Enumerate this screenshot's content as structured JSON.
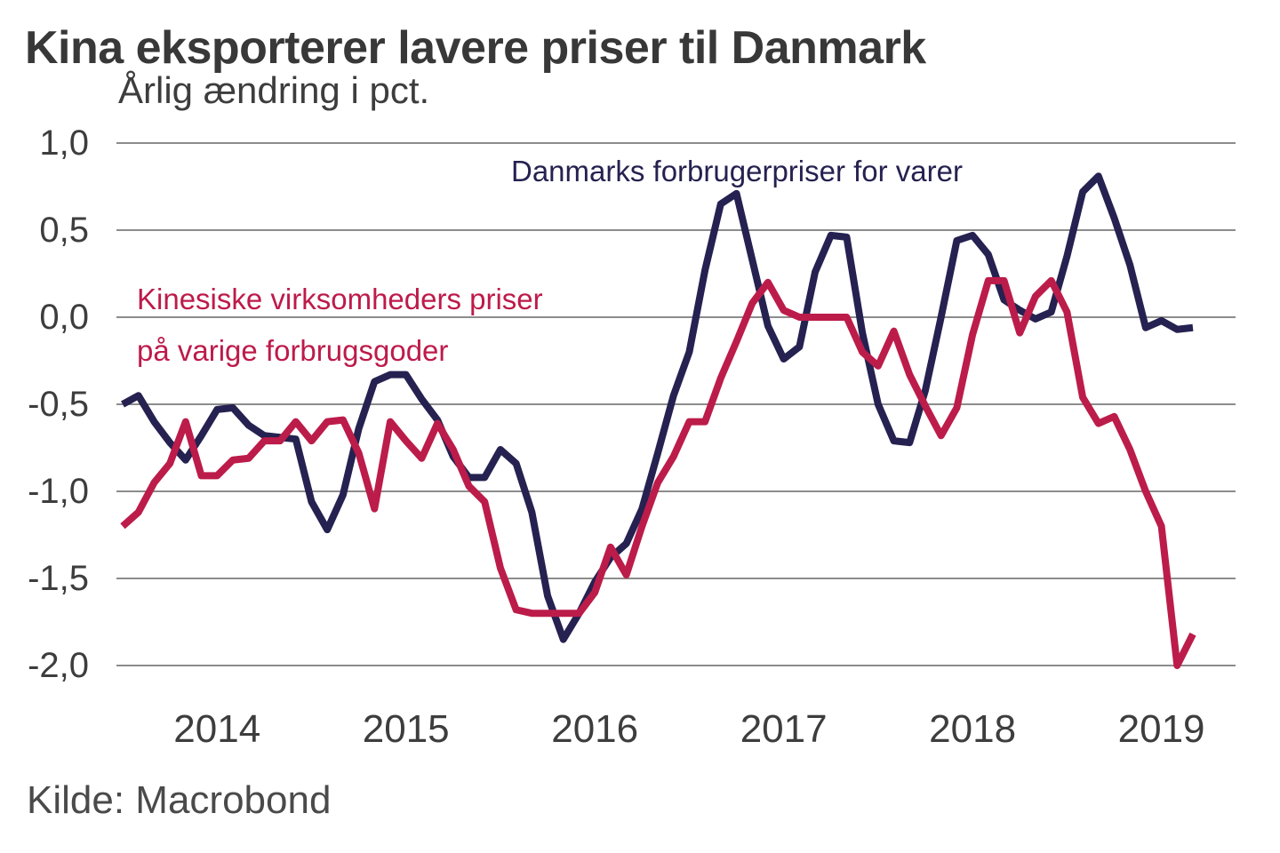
{
  "title": "Kina eksporterer lavere priser til Danmark",
  "subtitle": "Årlig ændring i pct.",
  "source": "Kilde: Macrobond",
  "colors": {
    "navy_line": "#252150",
    "red_line": "#bc1c4a",
    "grid": "#7b7b7b",
    "axis_text": "#3d3d3d",
    "title_text": "#383838",
    "background": "#ffffff"
  },
  "chart_data": {
    "type": "line",
    "title": "Kina eksporterer lavere priser til Danmark",
    "subtitle": "Årlig ændring i pct.",
    "xlabel": "",
    "ylabel": "Årlig ændring i pct.",
    "ylim": [
      -2.0,
      1.0
    ],
    "ytick_step": 0.5,
    "ytick_labels": [
      "1,0",
      "0,5",
      "0,0",
      "-0,5",
      "-1,0",
      "-1,5",
      "-2,0"
    ],
    "grid": "horizontal",
    "legend_position": "inline-annotations",
    "frequency": "monthly",
    "x": [
      "2013-07",
      "2013-08",
      "2013-09",
      "2013-10",
      "2013-11",
      "2013-12",
      "2014-01",
      "2014-02",
      "2014-03",
      "2014-04",
      "2014-05",
      "2014-06",
      "2014-07",
      "2014-08",
      "2014-09",
      "2014-10",
      "2014-11",
      "2014-12",
      "2015-01",
      "2015-02",
      "2015-03",
      "2015-04",
      "2015-05",
      "2015-06",
      "2015-07",
      "2015-08",
      "2015-09",
      "2015-10",
      "2015-11",
      "2015-12",
      "2016-01",
      "2016-02",
      "2016-03",
      "2016-04",
      "2016-05",
      "2016-06",
      "2016-07",
      "2016-08",
      "2016-09",
      "2016-10",
      "2016-11",
      "2016-12",
      "2017-01",
      "2017-02",
      "2017-03",
      "2017-04",
      "2017-05",
      "2017-06",
      "2017-07",
      "2017-08",
      "2017-09",
      "2017-10",
      "2017-11",
      "2017-12",
      "2018-01",
      "2018-02",
      "2018-03",
      "2018-04",
      "2018-05",
      "2018-06",
      "2018-07",
      "2018-08",
      "2018-09",
      "2018-10",
      "2018-11",
      "2018-12",
      "2019-01",
      "2019-02",
      "2019-03"
    ],
    "year_ticks": [
      {
        "label": "2014",
        "month_index": 6
      },
      {
        "label": "2015",
        "month_index": 18
      },
      {
        "label": "2016",
        "month_index": 30
      },
      {
        "label": "2017",
        "month_index": 42
      },
      {
        "label": "2018",
        "month_index": 54
      },
      {
        "label": "2019",
        "month_index": 66
      }
    ],
    "series": [
      {
        "name": "Danmarks forbrugerpriser for varer",
        "color": "#252150",
        "label_lines": [
          "Danmarks forbrugerpriser for varer"
        ],
        "values": [
          -0.5,
          -0.45,
          -0.6,
          -0.72,
          -0.82,
          -0.68,
          -0.53,
          -0.52,
          -0.62,
          -0.68,
          -0.69,
          -0.7,
          -1.06,
          -1.22,
          -1.02,
          -0.64,
          -0.37,
          -0.33,
          -0.33,
          -0.47,
          -0.59,
          -0.8,
          -0.92,
          -0.92,
          -0.76,
          -0.84,
          -1.12,
          -1.6,
          -1.85,
          -1.7,
          -1.52,
          -1.38,
          -1.3,
          -1.1,
          -0.78,
          -0.45,
          -0.2,
          0.27,
          0.65,
          0.71,
          0.33,
          -0.05,
          -0.24,
          -0.17,
          0.26,
          0.47,
          0.46,
          -0.09,
          -0.5,
          -0.71,
          -0.72,
          -0.42,
          0.0,
          0.44,
          0.47,
          0.36,
          0.1,
          0.04,
          -0.01,
          0.03,
          0.35,
          0.72,
          0.81,
          0.57,
          0.3,
          -0.06,
          -0.02,
          -0.07,
          -0.06
        ]
      },
      {
        "name": "Kinesiske virksomheders priser på varige forbrugsgoder",
        "color": "#bc1c4a",
        "label_lines": [
          "Kinesiske virksomheders priser",
          "på varige forbrugsgoder"
        ],
        "values": [
          -1.2,
          -1.12,
          -0.95,
          -0.84,
          -0.6,
          -0.91,
          -0.91,
          -0.82,
          -0.81,
          -0.71,
          -0.71,
          -0.6,
          -0.71,
          -0.6,
          -0.59,
          -0.78,
          -1.1,
          -0.6,
          -0.71,
          -0.81,
          -0.61,
          -0.76,
          -0.97,
          -1.06,
          -1.44,
          -1.68,
          -1.7,
          -1.7,
          -1.7,
          -1.7,
          -1.58,
          -1.32,
          -1.48,
          -1.2,
          -0.95,
          -0.8,
          -0.6,
          -0.6,
          -0.35,
          -0.14,
          0.08,
          0.2,
          0.04,
          0.0,
          0.0,
          0.0,
          0.0,
          -0.2,
          -0.28,
          -0.08,
          -0.33,
          -0.51,
          -0.68,
          -0.52,
          -0.1,
          0.21,
          0.21,
          -0.09,
          0.12,
          0.21,
          0.03,
          -0.46,
          -0.61,
          -0.57,
          -0.76,
          -1.0,
          -1.2,
          -2.0,
          -1.82
        ]
      }
    ]
  }
}
